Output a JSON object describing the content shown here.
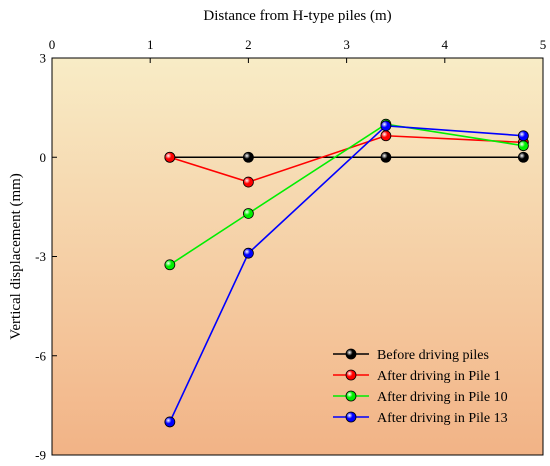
{
  "chart_data": {
    "type": "line",
    "xlabel": "Distance from H-type piles (m)",
    "ylabel": "Vertical displacement (mm)",
    "xlim": [
      0,
      5
    ],
    "ylim": [
      -9,
      3
    ],
    "x_axis_position": "top",
    "x_ticks": [
      0,
      1,
      2,
      3,
      4,
      5
    ],
    "y_ticks": [
      3,
      0,
      -3,
      -6,
      -9
    ],
    "grid": false,
    "legend_position": "bottom-right",
    "background_gradient": {
      "top": "#f8ecc6",
      "bottom": "#f2b386"
    },
    "series": [
      {
        "name": "Before driving piles",
        "color": "#000000",
        "x": [
          1.2,
          2.0,
          3.4,
          4.8
        ],
        "y": [
          0.0,
          0.0,
          0.0,
          0.0
        ]
      },
      {
        "name": "After driving in Pile 1",
        "color": "#ff0000",
        "x": [
          1.2,
          2.0,
          3.4,
          4.8
        ],
        "y": [
          0.0,
          -0.75,
          0.65,
          0.45
        ]
      },
      {
        "name": "After driving in Pile 10",
        "color": "#00ee00",
        "x": [
          1.2,
          2.0,
          3.4,
          4.8
        ],
        "y": [
          -3.25,
          -1.7,
          1.0,
          0.35
        ]
      },
      {
        "name": "After driving in Pile 13",
        "color": "#0000ff",
        "x": [
          1.2,
          2.0,
          3.4,
          4.8
        ],
        "y": [
          -8.0,
          -2.9,
          0.95,
          0.65
        ]
      }
    ]
  }
}
